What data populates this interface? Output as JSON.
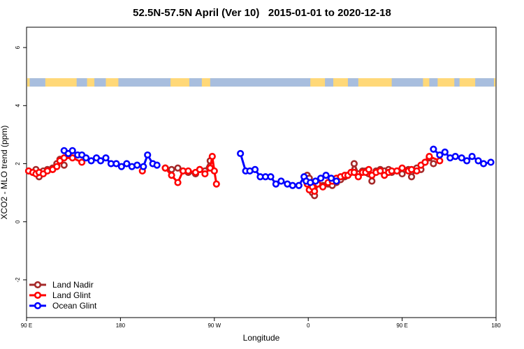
{
  "chart_data": {
    "type": "line",
    "title": "52.5N-57.5N April (Ver 10)   2015-01-01 to 2020-12-18",
    "xlabel": "Longitude",
    "ylabel": "XCO2 - MLO trend (ppm)",
    "xlim": [
      90,
      540
    ],
    "ylim": [
      -3.3,
      6.7
    ],
    "x_ticks": [
      {
        "value": 90,
        "label": "90 E"
      },
      {
        "value": 180,
        "label": "180"
      },
      {
        "value": 270,
        "label": "90 W"
      },
      {
        "value": 360,
        "label": "0"
      },
      {
        "value": 450,
        "label": "90 E"
      },
      {
        "value": 540,
        "label": "180"
      }
    ],
    "y_ticks": [
      -2,
      0,
      2,
      4,
      6
    ],
    "grid": false,
    "legend_position": "bottom-left",
    "land_sea_band": {
      "y": 4.8,
      "land_color": "#ffd878",
      "ocean_color": "#a8bede"
    },
    "series": [
      {
        "name": "Land Nadir",
        "color": "#a52a2a",
        "points": [
          [
            92,
            1.75
          ],
          [
            96,
            1.7
          ],
          [
            99,
            1.8
          ],
          [
            102,
            1.55
          ],
          [
            106,
            1.75
          ],
          [
            110,
            1.8
          ],
          [
            115,
            1.85
          ],
          [
            119,
            2.0
          ],
          [
            122,
            2.15
          ],
          [
            126,
            1.95
          ],
          [
            223,
            1.85
          ],
          [
            229,
            1.8
          ],
          [
            235,
            1.85
          ],
          [
            240,
            1.75
          ],
          [
            245,
            1.7
          ],
          [
            252,
            1.65
          ],
          [
            256,
            1.8
          ],
          [
            261,
            1.75
          ],
          [
            266,
            2.1
          ],
          [
            359,
            1.6
          ],
          [
            361,
            1.5
          ],
          [
            364,
            1.0
          ],
          [
            366,
            0.9
          ],
          [
            369,
            1.3
          ],
          [
            374,
            1.25
          ],
          [
            379,
            1.3
          ],
          [
            383,
            1.25
          ],
          [
            387,
            1.35
          ],
          [
            391,
            1.45
          ],
          [
            395,
            1.55
          ],
          [
            398,
            1.6
          ],
          [
            401,
            1.7
          ],
          [
            404,
            2.0
          ],
          [
            408,
            1.65
          ],
          [
            412,
            1.75
          ],
          [
            415,
            1.75
          ],
          [
            418,
            1.65
          ],
          [
            421,
            1.4
          ],
          [
            425,
            1.75
          ],
          [
            429,
            1.8
          ],
          [
            433,
            1.75
          ],
          [
            437,
            1.8
          ],
          [
            440,
            1.7
          ],
          [
            445,
            1.75
          ],
          [
            450,
            1.65
          ],
          [
            456,
            1.8
          ],
          [
            459,
            1.55
          ],
          [
            464,
            1.85
          ],
          [
            468,
            1.8
          ],
          [
            472,
            2.05
          ],
          [
            476,
            2.2
          ],
          [
            480,
            2.0
          ]
        ]
      },
      {
        "name": "Land Glint",
        "color": "#ff0000",
        "points": [
          [
            92,
            1.75
          ],
          [
            96,
            1.7
          ],
          [
            99,
            1.65
          ],
          [
            102,
            1.7
          ],
          [
            106,
            1.65
          ],
          [
            110,
            1.75
          ],
          [
            115,
            1.8
          ],
          [
            119,
            1.9
          ],
          [
            122,
            2.1
          ],
          [
            126,
            2.2
          ],
          [
            134,
            2.2
          ],
          [
            143,
            2.05
          ],
          [
            201,
            1.75
          ],
          [
            223,
            1.85
          ],
          [
            229,
            1.6
          ],
          [
            235,
            1.35
          ],
          [
            240,
            1.75
          ],
          [
            245,
            1.75
          ],
          [
            252,
            1.7
          ],
          [
            256,
            1.8
          ],
          [
            261,
            1.65
          ],
          [
            266,
            1.85
          ],
          [
            268,
            2.25
          ],
          [
            270,
            1.75
          ],
          [
            272,
            1.3
          ],
          [
            359,
            1.3
          ],
          [
            361,
            1.1
          ],
          [
            364,
            1.2
          ],
          [
            366,
            1.05
          ],
          [
            369,
            1.3
          ],
          [
            374,
            1.2
          ],
          [
            379,
            1.35
          ],
          [
            383,
            1.4
          ],
          [
            387,
            1.5
          ],
          [
            391,
            1.55
          ],
          [
            395,
            1.6
          ],
          [
            398,
            1.6
          ],
          [
            401,
            1.7
          ],
          [
            404,
            1.7
          ],
          [
            408,
            1.55
          ],
          [
            412,
            1.7
          ],
          [
            415,
            1.7
          ],
          [
            418,
            1.8
          ],
          [
            421,
            1.6
          ],
          [
            425,
            1.7
          ],
          [
            429,
            1.75
          ],
          [
            433,
            1.6
          ],
          [
            437,
            1.7
          ],
          [
            440,
            1.75
          ],
          [
            445,
            1.75
          ],
          [
            450,
            1.85
          ],
          [
            456,
            1.75
          ],
          [
            459,
            1.8
          ],
          [
            464,
            1.75
          ],
          [
            468,
            1.95
          ],
          [
            472,
            2.05
          ],
          [
            476,
            2.25
          ],
          [
            486,
            2.1
          ]
        ]
      },
      {
        "name": "Ocean Glint",
        "color": "#0000ff",
        "points": [
          [
            126,
            2.45
          ],
          [
            130,
            2.35
          ],
          [
            134,
            2.45
          ],
          [
            139,
            2.3
          ],
          [
            143,
            2.3
          ],
          [
            147,
            2.2
          ],
          [
            152,
            2.1
          ],
          [
            157,
            2.2
          ],
          [
            161,
            2.1
          ],
          [
            166,
            2.2
          ],
          [
            171,
            2.0
          ],
          [
            176,
            2.0
          ],
          [
            181,
            1.9
          ],
          [
            186,
            2.0
          ],
          [
            191,
            1.9
          ],
          [
            196,
            1.95
          ],
          [
            202,
            1.9
          ],
          [
            206,
            2.3
          ],
          [
            211,
            2.0
          ],
          [
            215,
            1.95
          ],
          [
            295,
            2.35
          ],
          [
            300,
            1.75
          ],
          [
            304,
            1.75
          ],
          [
            309,
            1.8
          ],
          [
            314,
            1.55
          ],
          [
            319,
            1.55
          ],
          [
            324,
            1.55
          ],
          [
            329,
            1.3
          ],
          [
            334,
            1.4
          ],
          [
            340,
            1.3
          ],
          [
            345,
            1.25
          ],
          [
            351,
            1.25
          ],
          [
            356,
            1.55
          ],
          [
            358,
            1.4
          ],
          [
            362,
            1.35
          ],
          [
            367,
            1.4
          ],
          [
            372,
            1.5
          ],
          [
            377,
            1.6
          ],
          [
            382,
            1.5
          ],
          [
            387,
            1.4
          ],
          [
            480,
            2.5
          ],
          [
            486,
            2.3
          ],
          [
            491,
            2.4
          ],
          [
            496,
            2.2
          ],
          [
            501,
            2.25
          ],
          [
            507,
            2.2
          ],
          [
            512,
            2.1
          ],
          [
            517,
            2.25
          ],
          [
            523,
            2.1
          ],
          [
            528,
            2.0
          ],
          [
            535,
            2.05
          ]
        ]
      }
    ]
  }
}
